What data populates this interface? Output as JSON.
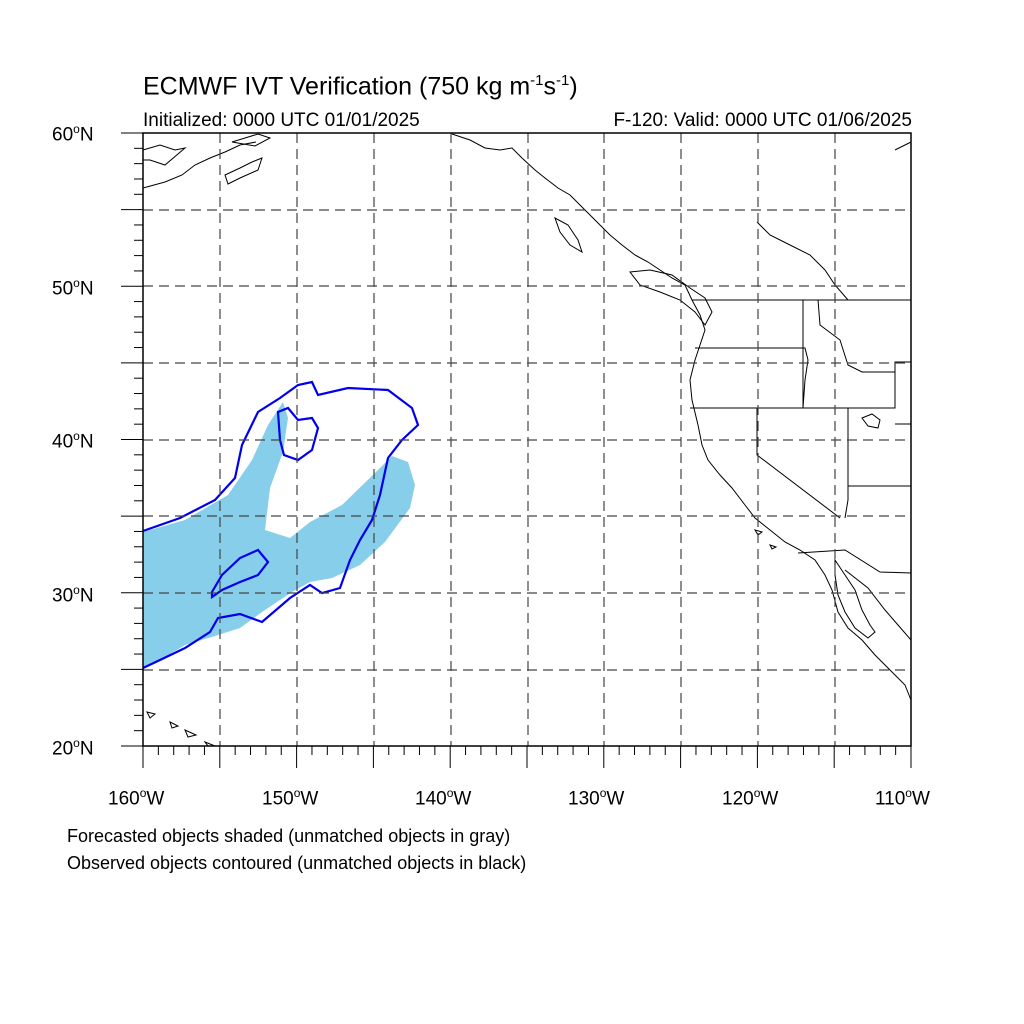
{
  "title": {
    "main": "ECMWF IVT Verification (750 kg m",
    "exp1": "-1",
    "mid": "s",
    "exp2": "-1",
    "end": ")"
  },
  "initialized": "Initialized: 0000 UTC 01/01/2025",
  "valid": "F-120: Valid: 0000 UTC 01/06/2025",
  "lat_labels": [
    {
      "value": "60",
      "unit": "N"
    },
    {
      "value": "50",
      "unit": "N"
    },
    {
      "value": "40",
      "unit": "N"
    },
    {
      "value": "30",
      "unit": "N"
    },
    {
      "value": "20",
      "unit": "N"
    }
  ],
  "lon_labels": [
    {
      "value": "160",
      "unit": "W"
    },
    {
      "value": "150",
      "unit": "W"
    },
    {
      "value": "140",
      "unit": "W"
    },
    {
      "value": "130",
      "unit": "W"
    },
    {
      "value": "120",
      "unit": "W"
    },
    {
      "value": "110",
      "unit": "W"
    }
  ],
  "degree_symbol": "o",
  "legend": {
    "forecast_note": "Forecasted objects shaded (unmatched objects in gray)",
    "observed_note": "Observed objects contoured (unmatched objects in black)"
  },
  "colors": {
    "forecast_matched": "#87ceeb",
    "observed_matched": "#0000ee",
    "coastline": "#000000",
    "grid": "#555555"
  }
}
